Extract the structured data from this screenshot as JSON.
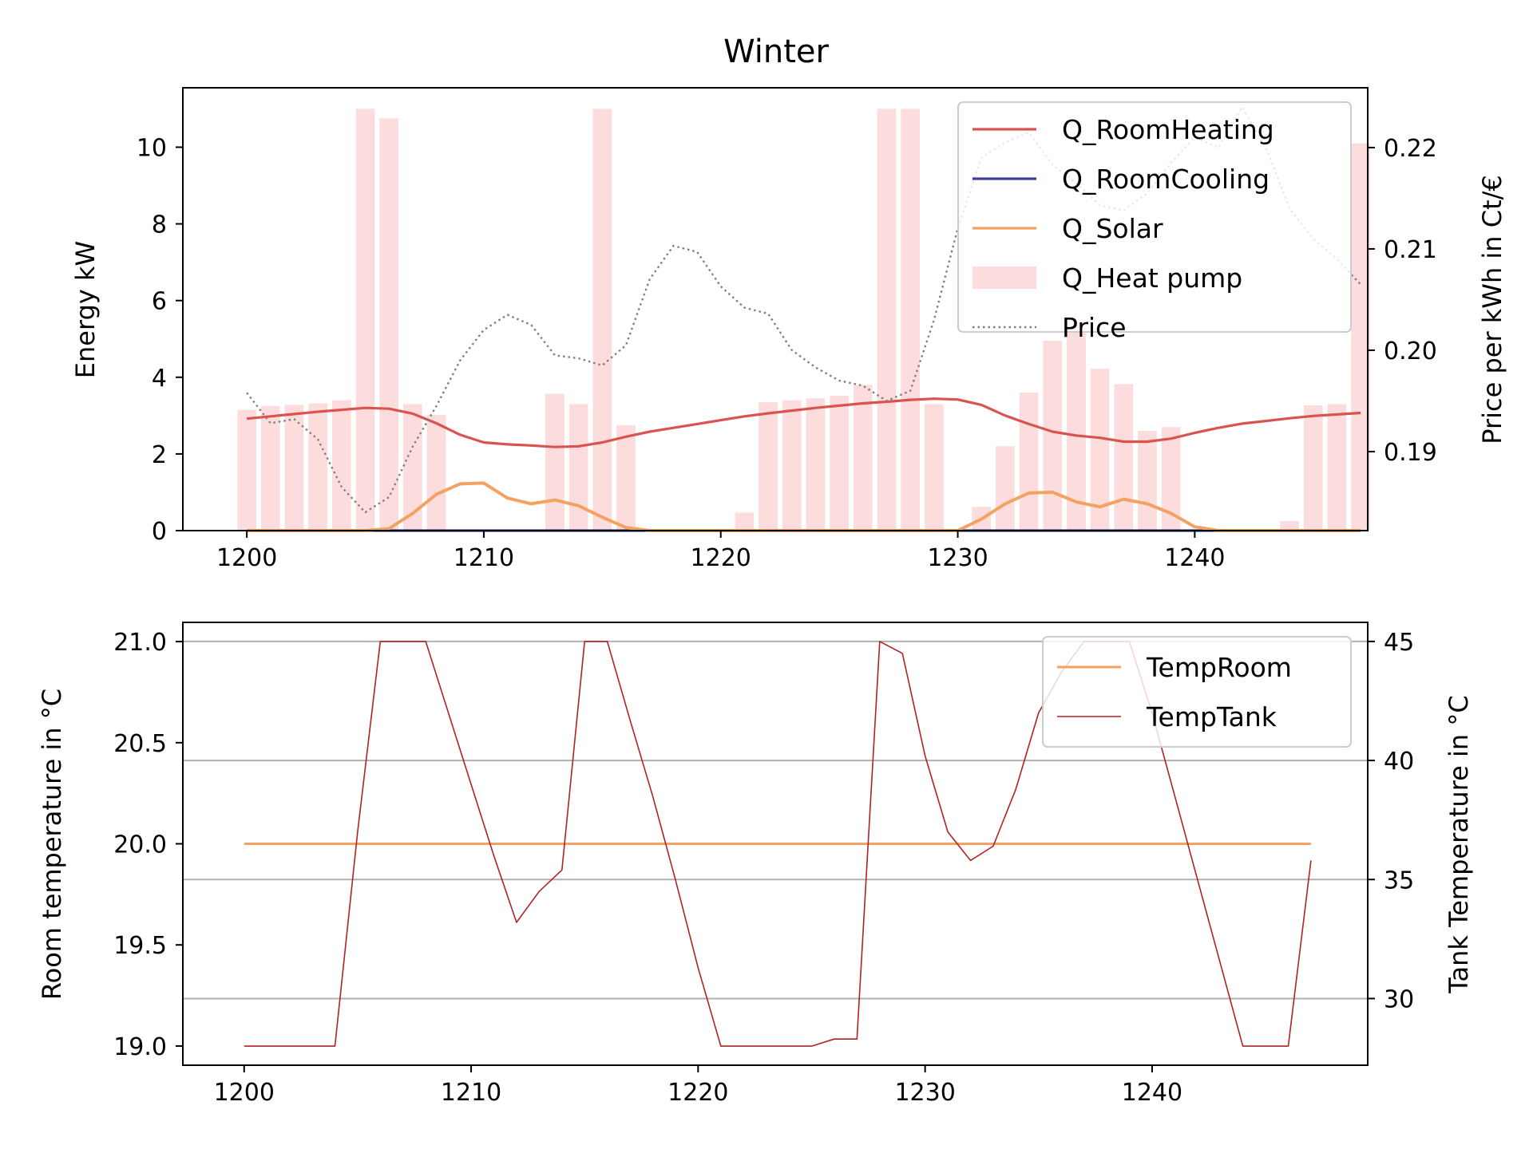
{
  "chart_data": [
    {
      "type": "bar+line",
      "title": "Winter",
      "xlabel": "",
      "ylabel": "Energy kW",
      "y2label": "Price per kWh in Ct/€",
      "xlim": [
        1197.3,
        1247.3
      ],
      "ylim": [
        0,
        11.55
      ],
      "y2lim": [
        0.1822,
        0.2259
      ],
      "xticks": [
        1200,
        1210,
        1220,
        1230,
        1240
      ],
      "yticks": [
        0,
        2,
        4,
        6,
        8,
        10
      ],
      "y2ticks": [
        0.19,
        0.2,
        0.21,
        0.22
      ],
      "grid": false,
      "legend_position": "upper-right",
      "x": [
        1200,
        1201,
        1202,
        1203,
        1204,
        1205,
        1206,
        1207,
        1208,
        1209,
        1210,
        1211,
        1212,
        1213,
        1214,
        1215,
        1216,
        1217,
        1218,
        1219,
        1220,
        1221,
        1222,
        1223,
        1224,
        1225,
        1226,
        1227,
        1228,
        1229,
        1230,
        1231,
        1232,
        1233,
        1234,
        1235,
        1236,
        1237,
        1238,
        1239,
        1240,
        1241,
        1242,
        1243,
        1244,
        1245,
        1246,
        1247
      ],
      "series": [
        {
          "name": "Q_RoomHeating",
          "kind": "line",
          "axis": "left",
          "color": "#d9534f",
          "values": [
            2.92,
            2.98,
            3.04,
            3.1,
            3.15,
            3.2,
            3.18,
            3.05,
            2.8,
            2.5,
            2.3,
            2.25,
            2.22,
            2.18,
            2.2,
            2.3,
            2.45,
            2.58,
            2.68,
            2.78,
            2.88,
            2.98,
            3.06,
            3.13,
            3.2,
            3.26,
            3.32,
            3.36,
            3.41,
            3.44,
            3.42,
            3.28,
            3.0,
            2.78,
            2.58,
            2.48,
            2.42,
            2.32,
            2.32,
            2.4,
            2.55,
            2.68,
            2.79,
            2.86,
            2.93,
            2.99,
            3.03,
            3.07
          ]
        },
        {
          "name": "Q_RoomCooling",
          "kind": "line",
          "axis": "left",
          "color": "#3c3ca8",
          "values": [
            0,
            0,
            0,
            0,
            0,
            0,
            0,
            0,
            0,
            0,
            0,
            0,
            0,
            0,
            0,
            0,
            0,
            0,
            0,
            0,
            0,
            0,
            0,
            0,
            0,
            0,
            0,
            0,
            0,
            0,
            0,
            0,
            0,
            0,
            0,
            0,
            0,
            0,
            0,
            0,
            0,
            0,
            0,
            0,
            0,
            0,
            0,
            0
          ]
        },
        {
          "name": "Q_Solar",
          "kind": "line",
          "axis": "left",
          "color": "#f4a261",
          "values": [
            0,
            0,
            0,
            0,
            0,
            0,
            0.05,
            0.45,
            0.95,
            1.22,
            1.24,
            0.85,
            0.7,
            0.8,
            0.65,
            0.35,
            0.08,
            0,
            0,
            0,
            0,
            0,
            0,
            0,
            0,
            0,
            0,
            0,
            0,
            0,
            0,
            0.3,
            0.7,
            0.98,
            1.0,
            0.75,
            0.62,
            0.82,
            0.7,
            0.45,
            0.1,
            0,
            0,
            0,
            0,
            0,
            0,
            0
          ]
        },
        {
          "name": "Q_Heat pump",
          "kind": "bar",
          "axis": "left",
          "color": "#fcdcdc",
          "values": [
            3.15,
            3.25,
            3.28,
            3.32,
            3.4,
            11.0,
            10.75,
            3.3,
            3.02,
            0,
            0,
            0,
            0,
            3.57,
            3.3,
            11.0,
            2.75,
            0,
            0,
            0,
            0,
            0.47,
            3.35,
            3.4,
            3.45,
            3.52,
            3.8,
            11.0,
            11.0,
            3.3,
            0,
            0.62,
            2.2,
            3.6,
            4.95,
            5.45,
            4.22,
            3.82,
            2.6,
            2.7,
            0,
            0,
            0,
            0,
            0.25,
            3.27,
            3.3,
            10.1
          ]
        },
        {
          "name": "Price",
          "kind": "line",
          "style": "dotted",
          "axis": "right",
          "color": "#808080",
          "values": [
            0.1958,
            0.1928,
            0.1932,
            0.1912,
            0.1865,
            0.184,
            0.1855,
            0.1905,
            0.1945,
            0.199,
            0.202,
            0.2035,
            0.2025,
            0.1995,
            0.1992,
            0.1985,
            0.2005,
            0.207,
            0.2103,
            0.2097,
            0.2063,
            0.2042,
            0.2036,
            0.2,
            0.1983,
            0.197,
            0.1965,
            0.195,
            0.196,
            0.203,
            0.212,
            0.219,
            0.2205,
            0.2215,
            0.2183,
            0.2165,
            0.2143,
            0.2138,
            0.2155,
            0.2185,
            0.221,
            0.22,
            0.224,
            0.22,
            0.214,
            0.211,
            0.209,
            0.2065
          ]
        }
      ]
    },
    {
      "type": "line",
      "title": "",
      "xlabel": "",
      "ylabel": "Room temperature in °C",
      "y2label": "Tank Temperature in °C",
      "xlim": [
        1197.3,
        1249.5
      ],
      "ylim": [
        18.905,
        21.095
      ],
      "y2lim": [
        27.2,
        45.8
      ],
      "xticks": [
        1200,
        1210,
        1220,
        1230,
        1240
      ],
      "yticks": [
        19.0,
        19.5,
        20.0,
        20.5,
        21.0
      ],
      "ytick_labels": [
        "19.0",
        "19.5",
        "20.0",
        "20.5",
        "21.0"
      ],
      "y2ticks": [
        30,
        35,
        40,
        45
      ],
      "grid": true,
      "grid_axis": "right",
      "legend_position": "upper-right",
      "x": [
        1200,
        1201,
        1202,
        1203,
        1204,
        1205,
        1206,
        1207,
        1208,
        1209,
        1210,
        1211,
        1212,
        1213,
        1214,
        1215,
        1216,
        1217,
        1218,
        1219,
        1220,
        1221,
        1222,
        1223,
        1224,
        1225,
        1226,
        1227,
        1228,
        1229,
        1230,
        1231,
        1232,
        1233,
        1234,
        1235,
        1236,
        1237,
        1238,
        1239,
        1240,
        1241,
        1242,
        1243,
        1244,
        1245,
        1246,
        1247
      ],
      "series": [
        {
          "name": "TempRoom",
          "axis": "left",
          "color": "#f4a261",
          "values": [
            20,
            20,
            20,
            20,
            20,
            20,
            20,
            20,
            20,
            20,
            20,
            20,
            20,
            20,
            20,
            20,
            20,
            20,
            20,
            20,
            20,
            20,
            20,
            20,
            20,
            20,
            20,
            20,
            20,
            20,
            20,
            20,
            20,
            20,
            20,
            20,
            20,
            20,
            20,
            20,
            20,
            20,
            20,
            20,
            20,
            20,
            20,
            20
          ]
        },
        {
          "name": "TempTank",
          "axis": "right",
          "color": "#b22222",
          "values": [
            28,
            28,
            28,
            28,
            28,
            37,
            45,
            45,
            45,
            42,
            39,
            36,
            33.2,
            34.5,
            35.4,
            45,
            45,
            41.7,
            38.5,
            35,
            31.3,
            28,
            28,
            28,
            28,
            28,
            28.3,
            28.3,
            45,
            44.5,
            40.2,
            37,
            35.8,
            36.4,
            38.8,
            42,
            43.7,
            45,
            45,
            45,
            42,
            38.5,
            35,
            31.5,
            28,
            28,
            28,
            35.8
          ]
        }
      ]
    }
  ]
}
